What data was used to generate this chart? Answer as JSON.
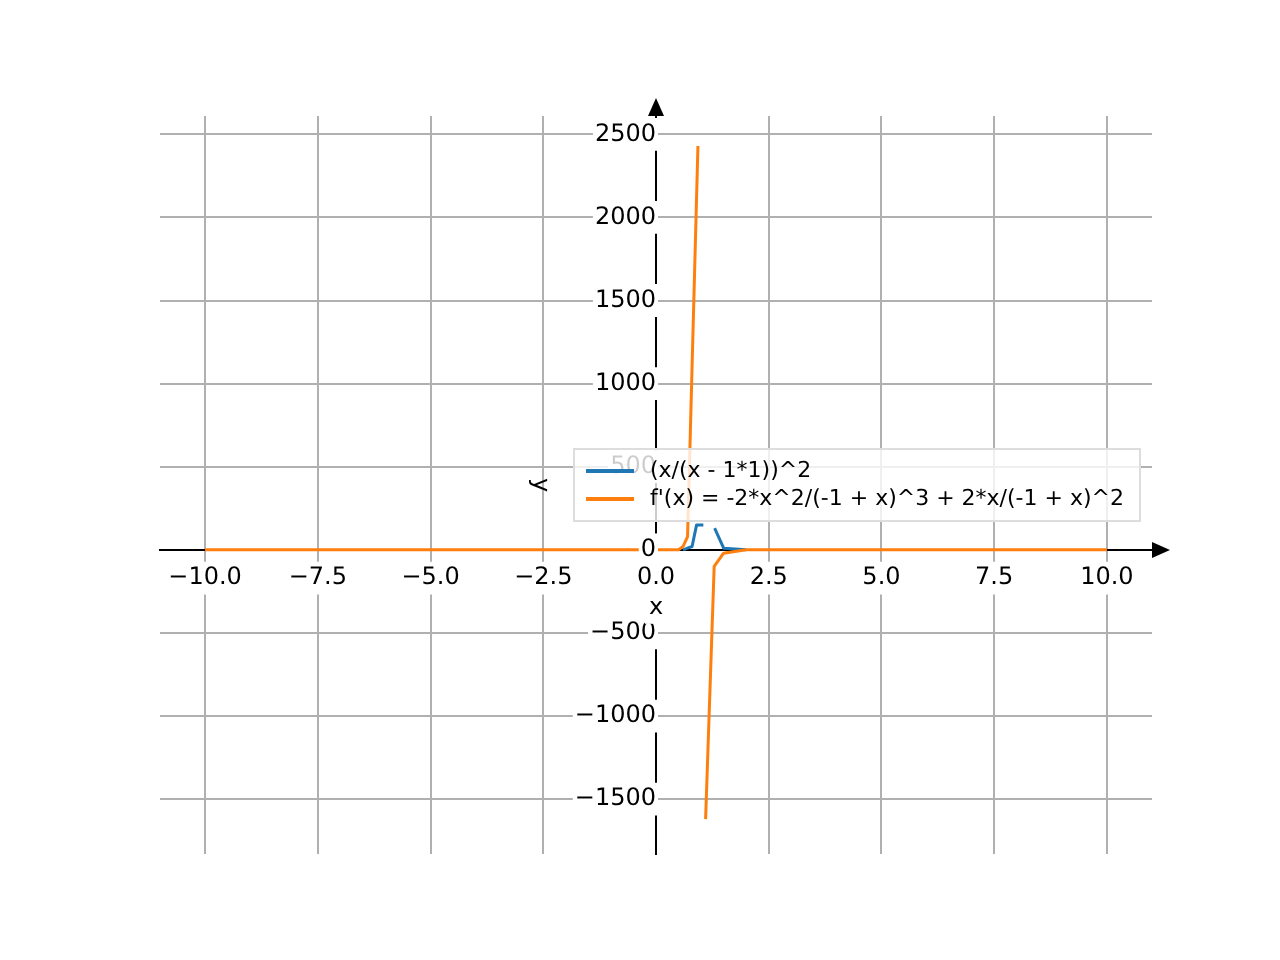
{
  "chart_data": {
    "type": "line",
    "xlabel": "x",
    "ylabel": "y",
    "xlim": [
      -11,
      11
    ],
    "ylim": [
      -1830,
      2610
    ],
    "xticks": [
      {
        "value": -10,
        "label": "−10.0"
      },
      {
        "value": -7.5,
        "label": "−7.5"
      },
      {
        "value": -5,
        "label": "−5.0"
      },
      {
        "value": -2.5,
        "label": "−2.5"
      },
      {
        "value": 0,
        "label": "0.0"
      },
      2.5,
      {
        "value": 5,
        "label": "5.0"
      },
      7.5,
      {
        "value": 10,
        "label": "10.0"
      }
    ],
    "yticks": [
      {
        "value": -1500,
        "label": "−1500"
      },
      {
        "value": -1000,
        "label": "−1000"
      },
      {
        "value": -500,
        "label": "−500"
      },
      0,
      500,
      1000,
      1500,
      2000,
      2500
    ],
    "grid": true,
    "legend": "center right",
    "marker": "none",
    "line_style": "solid",
    "series": [
      {
        "name": "(x/(x - 1*1))^2",
        "color": "#1f77b4",
        "x": [
          0.6,
          0.7,
          0.8,
          0.9,
          1.05,
          1.2,
          1.3,
          1.5,
          2
        ],
        "values": [
          0,
          10,
          20,
          150,
          150,
          null,
          130,
          10,
          0
        ]
      },
      {
        "name": "f'(x) = -2*x^2/(-1 + x)^3 + 2*x/(-1 + x)^2",
        "color": "#ff7f0e",
        "x": [
          -10,
          -5,
          0,
          0.5,
          0.6,
          0.7,
          0.93,
          1.0,
          1.1,
          1.29,
          1.5,
          2,
          5,
          10
        ],
        "values": [
          0,
          0,
          0,
          0,
          20,
          80,
          2430,
          null,
          -1620,
          -100,
          -20,
          0,
          0,
          0
        ]
      }
    ]
  }
}
